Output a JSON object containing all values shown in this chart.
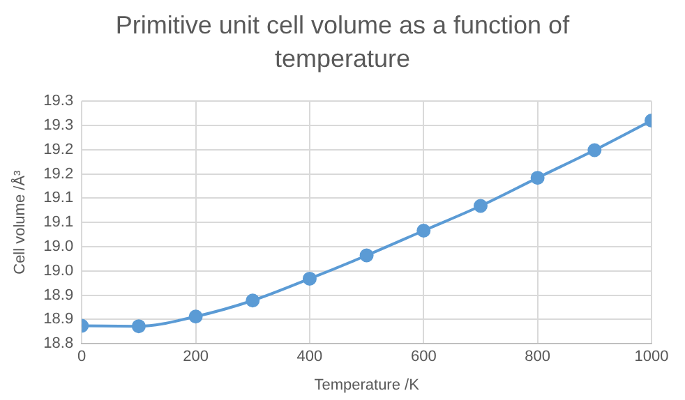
{
  "chart_data": {
    "type": "line",
    "title": "Primitive unit cell volume as a function of temperature",
    "xlabel": "Temperature /K",
    "ylabel": "Cell volume /Å³",
    "x": [
      0,
      100,
      200,
      300,
      400,
      500,
      600,
      700,
      800,
      900,
      1000
    ],
    "series": [
      {
        "color": "#5b9bd5",
        "values": [
          18.837,
          18.836,
          18.856,
          18.889,
          18.934,
          18.982,
          19.033,
          19.084,
          19.142,
          19.199,
          19.26
        ]
      }
    ],
    "xlim": [
      0,
      1000
    ],
    "xticks": [
      0,
      200,
      400,
      600,
      800,
      1000
    ],
    "ylim": [
      18.8,
      19.3
    ],
    "yticks": [
      {
        "value": 18.8,
        "label": "18.8"
      },
      {
        "value": 18.85,
        "label": "18.9"
      },
      {
        "value": 18.9,
        "label": "18.9"
      },
      {
        "value": 18.95,
        "label": "19.0"
      },
      {
        "value": 19.0,
        "label": "19.0"
      },
      {
        "value": 19.05,
        "label": "19.1"
      },
      {
        "value": 19.1,
        "label": "19.1"
      },
      {
        "value": 19.15,
        "label": "19.2"
      },
      {
        "value": 19.2,
        "label": "19.2"
      },
      {
        "value": 19.25,
        "label": "19.3"
      },
      {
        "value": 19.3,
        "label": "19.3"
      }
    ],
    "grid": true,
    "legend": false,
    "marker": "circle",
    "line_style": "solid"
  }
}
